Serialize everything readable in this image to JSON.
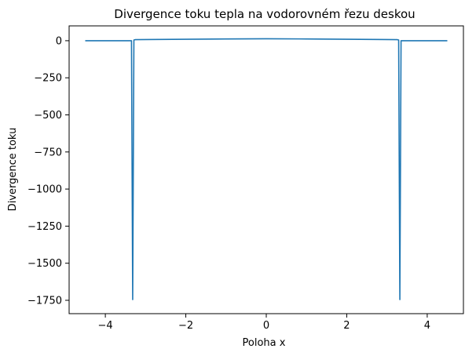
{
  "chart_data": {
    "type": "line",
    "title": "Divergence toku tepla na vodorovném řezu deskou",
    "xlabel": "Poloha x",
    "ylabel": "Divergence toku",
    "xlim": [
      -4.9,
      4.9
    ],
    "ylim": [
      -1840,
      100
    ],
    "xticks": [
      -4,
      -2,
      0,
      2,
      4
    ],
    "xtick_labels": [
      "−4",
      "−2",
      "0",
      "2",
      "4"
    ],
    "yticks": [
      0,
      -250,
      -500,
      -750,
      -1000,
      -1250,
      -1500,
      -1750
    ],
    "ytick_labels": [
      "0",
      "−250",
      "−500",
      "−750",
      "−1000",
      "−1250",
      "−1500",
      "−1750"
    ],
    "grid": false,
    "series": [
      {
        "name": "divergence",
        "color": "#1f77b4",
        "x": [
          -4.5,
          -3.35,
          -3.32,
          -3.29,
          -3.26,
          -3.0,
          -2.0,
          -1.0,
          0.0,
          1.0,
          2.0,
          3.0,
          3.26,
          3.29,
          3.32,
          3.35,
          4.5
        ],
        "y": [
          0,
          0,
          -1745,
          5,
          7,
          8,
          10,
          12,
          13,
          12,
          10,
          8,
          7,
          5,
          -1745,
          0,
          0
        ]
      }
    ]
  }
}
